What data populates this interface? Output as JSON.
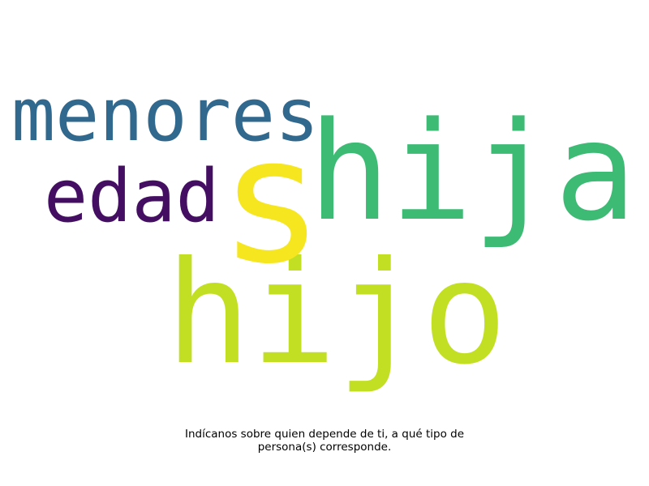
{
  "words": {
    "menores": {
      "text": "menores",
      "color": "#31688e"
    },
    "edad": {
      "text": "edad",
      "color": "#440f62"
    },
    "hija": {
      "text": "hija",
      "color": "#3dbb74"
    },
    "s": {
      "text": "s",
      "color": "#f6e620"
    },
    "hijo": {
      "text": "hijo",
      "color": "#c2df23"
    }
  },
  "caption": {
    "line1": "Indícanos sobre quien depende de ti, a qué tipo de",
    "line2": "persona(s) corresponde."
  }
}
